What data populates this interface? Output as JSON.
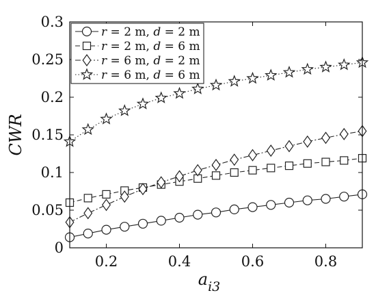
{
  "chart_data": {
    "type": "line",
    "x": [
      0.1,
      0.15,
      0.2,
      0.25,
      0.3,
      0.35,
      0.4,
      0.45,
      0.5,
      0.55,
      0.6,
      0.65,
      0.7,
      0.75,
      0.8,
      0.85,
      0.9
    ],
    "series": [
      {
        "name": "r = 2 m, d = 2 m",
        "label_parts": [
          "r",
          " = 2 m, ",
          "d",
          " = 2 m"
        ],
        "marker": "circle",
        "line_style": "solid",
        "values": [
          0.014,
          0.019,
          0.024,
          0.028,
          0.032,
          0.036,
          0.04,
          0.044,
          0.047,
          0.051,
          0.054,
          0.057,
          0.06,
          0.063,
          0.065,
          0.068,
          0.071
        ]
      },
      {
        "name": "r = 2 m, d = 6 m",
        "label_parts": [
          "r",
          " = 2 m, ",
          "d",
          " = 6 m"
        ],
        "marker": "square",
        "line_style": "dashed",
        "values": [
          0.06,
          0.066,
          0.071,
          0.076,
          0.08,
          0.084,
          0.088,
          0.092,
          0.096,
          0.1,
          0.103,
          0.106,
          0.109,
          0.112,
          0.114,
          0.116,
          0.119
        ]
      },
      {
        "name": "r = 6 m, d = 2 m",
        "label_parts": [
          "r",
          " = 6 m, ",
          "d",
          " = 2 m"
        ],
        "marker": "diamond",
        "line_style": "dashdot",
        "values": [
          0.034,
          0.046,
          0.057,
          0.068,
          0.078,
          0.087,
          0.095,
          0.103,
          0.11,
          0.117,
          0.123,
          0.129,
          0.135,
          0.141,
          0.146,
          0.151,
          0.155
        ]
      },
      {
        "name": "r = 6 m, d = 6 m",
        "label_parts": [
          "r",
          " = 6 m, ",
          "d",
          " = 6 m"
        ],
        "marker": "star",
        "line_style": "dotted",
        "values": [
          0.141,
          0.157,
          0.171,
          0.182,
          0.191,
          0.199,
          0.205,
          0.211,
          0.216,
          0.221,
          0.225,
          0.229,
          0.233,
          0.237,
          0.24,
          0.243,
          0.246
        ]
      }
    ],
    "ylabel": "CWR",
    "xlabel_main": "a",
    "xlabel_sub": "i3",
    "xlim": [
      0.1,
      0.9
    ],
    "ylim": [
      0,
      0.3
    ],
    "xticks": [
      0.2,
      0.4,
      0.6,
      0.8
    ],
    "xtick_labels": [
      "0.2",
      "0.4",
      "0.6",
      "0.8"
    ],
    "yticks": [
      0,
      0.05,
      0.1,
      0.15,
      0.2,
      0.25,
      0.3
    ],
    "ytick_labels": [
      "0",
      "0.05",
      "0.1",
      "0.15",
      "0.2",
      "0.25",
      "0.3"
    ],
    "grid": false,
    "legend_position": "top-left",
    "colors": {
      "line": "#222222",
      "marker_fill": "#ffffff",
      "axes": "#111111"
    }
  }
}
